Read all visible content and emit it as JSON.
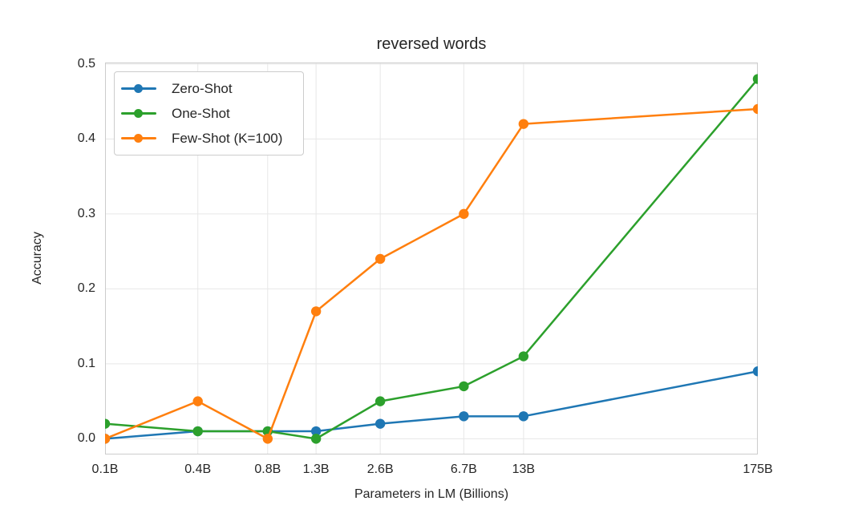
{
  "chart_data": {
    "type": "line",
    "title": "reversed words",
    "xlabel": "Parameters in LM (Billions)",
    "ylabel": "Accuracy",
    "x_scale": "log",
    "categories": [
      "0.1B",
      "0.4B",
      "0.8B",
      "1.3B",
      "2.6B",
      "6.7B",
      "13B",
      "175B"
    ],
    "x": [
      0.125,
      0.35,
      0.76,
      1.3,
      2.65,
      6.7,
      13,
      175
    ],
    "series": [
      {
        "name": "Zero-Shot",
        "color": "#1f77b4",
        "values": [
          0.0,
          0.01,
          0.01,
          0.01,
          0.02,
          0.03,
          0.03,
          0.09
        ]
      },
      {
        "name": "One-Shot",
        "color": "#2ca02c",
        "values": [
          0.02,
          0.01,
          0.01,
          0.0,
          0.05,
          0.07,
          0.11,
          0.48
        ]
      },
      {
        "name": "Few-Shot (K=100)",
        "color": "#ff7f0e",
        "values": [
          0.0,
          0.05,
          0.0,
          0.17,
          0.24,
          0.3,
          0.42,
          0.44
        ]
      }
    ],
    "y_ticks": [
      0.0,
      0.1,
      0.2,
      0.3,
      0.4,
      0.5
    ],
    "y_tick_labels": [
      "0.0",
      "0.1",
      "0.2",
      "0.3",
      "0.4",
      "0.5"
    ],
    "ylim": [
      -0.021,
      0.502
    ],
    "xlim": [
      0.125,
      175
    ],
    "grid": true,
    "legend_position": "upper left",
    "style": {
      "grid_color": "#e7e7e7",
      "spine_color": "#cccccc",
      "text_color": "#262626",
      "background": "#ffffff"
    }
  }
}
